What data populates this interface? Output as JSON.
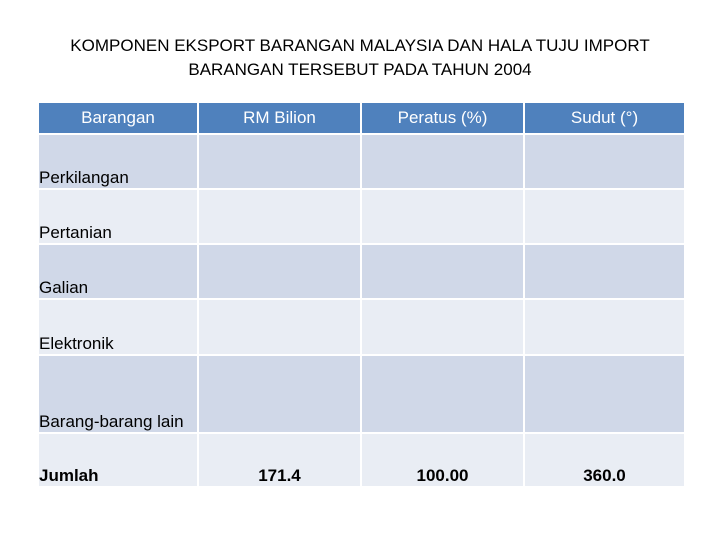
{
  "title": {
    "line1": "KOMPONEN EKSPORT BARANGAN MALAYSIA DAN HALA TUJU IMPORT",
    "line2": "BARANGAN TERSEBUT PADA TAHUN 2004"
  },
  "table": {
    "headers": [
      "Barangan",
      "RM Bilion",
      "Peratus (%)",
      "Sudut (°)"
    ],
    "rows": [
      {
        "label": "Perkilangan",
        "rm": "",
        "peratus": "",
        "sudut": ""
      },
      {
        "label": "Pertanian",
        "rm": "",
        "peratus": "",
        "sudut": ""
      },
      {
        "label": "Galian",
        "rm": "",
        "peratus": "",
        "sudut": ""
      },
      {
        "label": "Elektronik",
        "rm": "",
        "peratus": "",
        "sudut": ""
      },
      {
        "label": "Barang-barang lain",
        "rm": "",
        "peratus": "",
        "sudut": ""
      }
    ],
    "total": {
      "label": "Jumlah",
      "rm": "171.4",
      "peratus": "100.00",
      "sudut": "360.0"
    }
  },
  "colors": {
    "header": "#4f81bd",
    "row_dark": "#d0d8e8",
    "row_light": "#e9edf4"
  }
}
